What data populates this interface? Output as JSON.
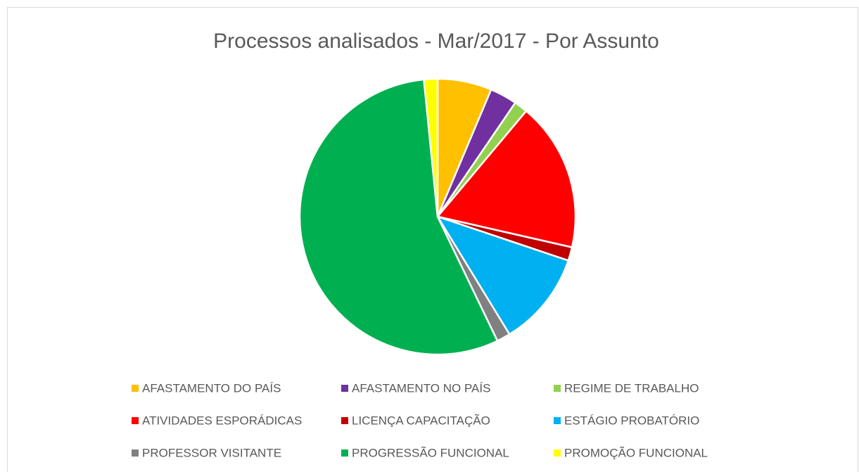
{
  "chart_data": {
    "type": "pie",
    "title": "Processos analisados - Mar/2017 - Por Assunto",
    "categories": [
      "AFASTAMENTO DO PAÍS",
      "AFASTAMENTO NO PAÍS",
      "REGIME DE TRABALHO",
      "ATIVIDADES ESPORÁDICAS",
      "LICENÇA CAPACITAÇÃO",
      "ESTÁGIO PROBATÓRIO",
      "PROFESSOR VISITANTE",
      "PROGRESSÃO FUNCIONAL",
      "PROMOÇÃO FUNCIONAL"
    ],
    "values": [
      4,
      2,
      1,
      11,
      1,
      7,
      1,
      35,
      1
    ],
    "colors": [
      "#FFC000",
      "#7030A0",
      "#92D050",
      "#FF0000",
      "#C00000",
      "#00B0F0",
      "#808080",
      "#00B050",
      "#FFFF00"
    ],
    "legend": "bottom"
  }
}
